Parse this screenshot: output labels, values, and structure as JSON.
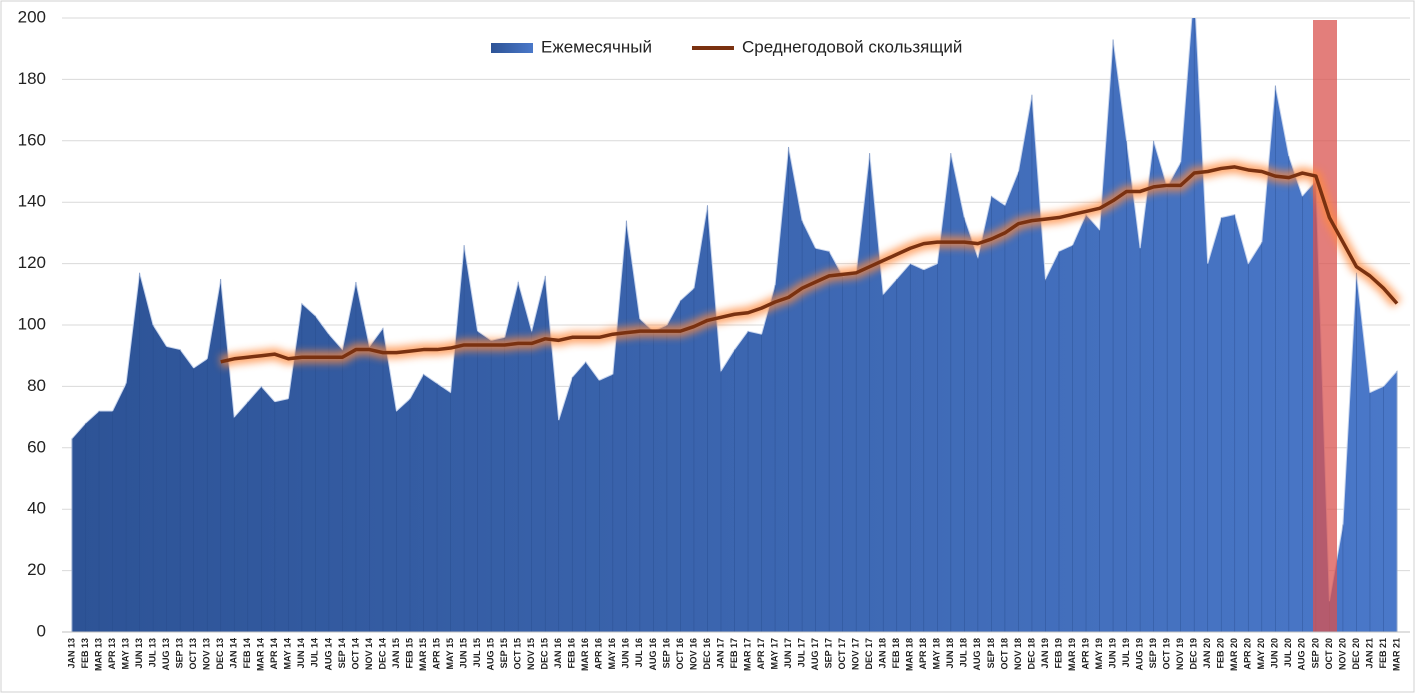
{
  "chart_data": {
    "type": "area_line",
    "categories": [
      "JAN 13",
      "FEB 13",
      "MAR 13",
      "APR 13",
      "MAY 13",
      "JUN 13",
      "JUL 13",
      "AUG 13",
      "SEP 13",
      "OCT 13",
      "NOV 13",
      "DEC 13",
      "JAN 14",
      "FEB 14",
      "MAR 14",
      "APR 14",
      "MAY 14",
      "JUN 14",
      "JUL 14",
      "AUG 14",
      "SEP 14",
      "OCT 14",
      "NOV 14",
      "DEC 14",
      "JAN 15",
      "FEB 15",
      "MAR 15",
      "APR 15",
      "MAY 15",
      "JUN 15",
      "JUL 15",
      "AUG 15",
      "SEP 15",
      "OCT 15",
      "NOV 15",
      "DEC 15",
      "JAN 16",
      "FEB 16",
      "MAR 16",
      "APR 16",
      "MAY 16",
      "JUN 16",
      "JUL 16",
      "AUG 16",
      "SEP 16",
      "OCT 16",
      "NOV 16",
      "DEC 16",
      "JAN 17",
      "FEB 17",
      "MAR 17",
      "APR 17",
      "MAY 17",
      "JUN 17",
      "JUL 17",
      "AUG 17",
      "SEP 17",
      "OCT 17",
      "NOV 17",
      "DEC 17",
      "JAN 18",
      "FEB 18",
      "MAR 18",
      "APR 18",
      "MAY 18",
      "JUN 18",
      "JUL 18",
      "AUG 18",
      "SEP 18",
      "OCT 18",
      "NOV 18",
      "DEC 18",
      "JAN 19",
      "FEB 19",
      "MAR 19",
      "APR 19",
      "MAY 19",
      "JUN 19",
      "JUL 19",
      "AUG 19",
      "SEP 19",
      "OCT 19",
      "NOV 19",
      "DEC 19",
      "JAN 20",
      "FEB 20",
      "MAR 20",
      "APR 20",
      "MAY 20",
      "JUN 20",
      "JUL 20",
      "AUG 20",
      "SEP 20",
      "OCT 20",
      "NOV 20",
      "DEC 20",
      "JAN 21",
      "FEB 21",
      "MAR 21"
    ],
    "series": [
      {
        "name": "Ежемесячный",
        "color": "#3f6cc0",
        "kind": "area",
        "values": [
          63,
          68,
          72,
          72,
          81,
          117,
          100,
          93,
          92,
          86,
          89,
          115,
          70,
          75,
          80,
          75,
          76,
          107,
          103,
          97,
          92,
          114,
          93,
          99,
          72,
          76,
          84,
          81,
          78,
          126,
          98,
          95,
          96,
          114,
          98,
          116,
          69,
          83,
          88,
          82,
          84,
          134,
          102,
          98,
          100,
          108,
          112,
          139,
          85,
          92,
          98,
          97,
          113,
          158,
          134,
          125,
          124,
          116,
          117,
          156,
          110,
          115,
          120,
          118,
          120,
          156,
          135,
          122,
          142,
          139,
          150,
          175,
          115,
          124,
          126,
          136,
          131,
          193,
          160,
          125,
          160,
          145,
          153,
          210,
          120,
          135,
          136,
          120,
          127,
          178,
          155,
          142,
          147,
          10,
          35,
          117,
          78,
          80,
          85
        ]
      },
      {
        "name": "Среднегодовой скользящий",
        "color": "#7a3110",
        "kind": "line",
        "values": [
          null,
          null,
          null,
          null,
          null,
          null,
          null,
          null,
          null,
          null,
          null,
          88,
          89,
          89.5,
          90,
          90.5,
          89,
          89.5,
          89.5,
          89.5,
          89.5,
          92,
          92,
          91,
          91,
          91.5,
          92,
          92,
          92.5,
          93.5,
          93.5,
          93.5,
          93.5,
          94,
          94,
          95.5,
          95,
          96,
          96,
          96,
          97,
          97.5,
          98,
          98,
          98,
          98,
          99.5,
          101.5,
          102.5,
          103.5,
          104,
          105.5,
          107.5,
          109,
          112,
          114,
          116,
          116.5,
          117,
          119,
          121,
          123,
          125,
          126.5,
          127,
          127,
          127,
          126.5,
          128,
          130,
          133,
          134,
          134.5,
          135,
          136,
          137,
          138,
          140.5,
          143.5,
          143.5,
          145,
          145.5,
          145.5,
          149.5,
          150,
          151,
          151.5,
          150.5,
          150,
          148.5,
          148,
          149.5,
          148.5,
          135,
          127,
          119,
          116,
          112,
          107
        ]
      }
    ],
    "ylim": [
      0,
      200
    ],
    "yticks": [
      0,
      20,
      40,
      60,
      80,
      100,
      120,
      140,
      160,
      180,
      200
    ],
    "grid": true,
    "legend": "top"
  }
}
